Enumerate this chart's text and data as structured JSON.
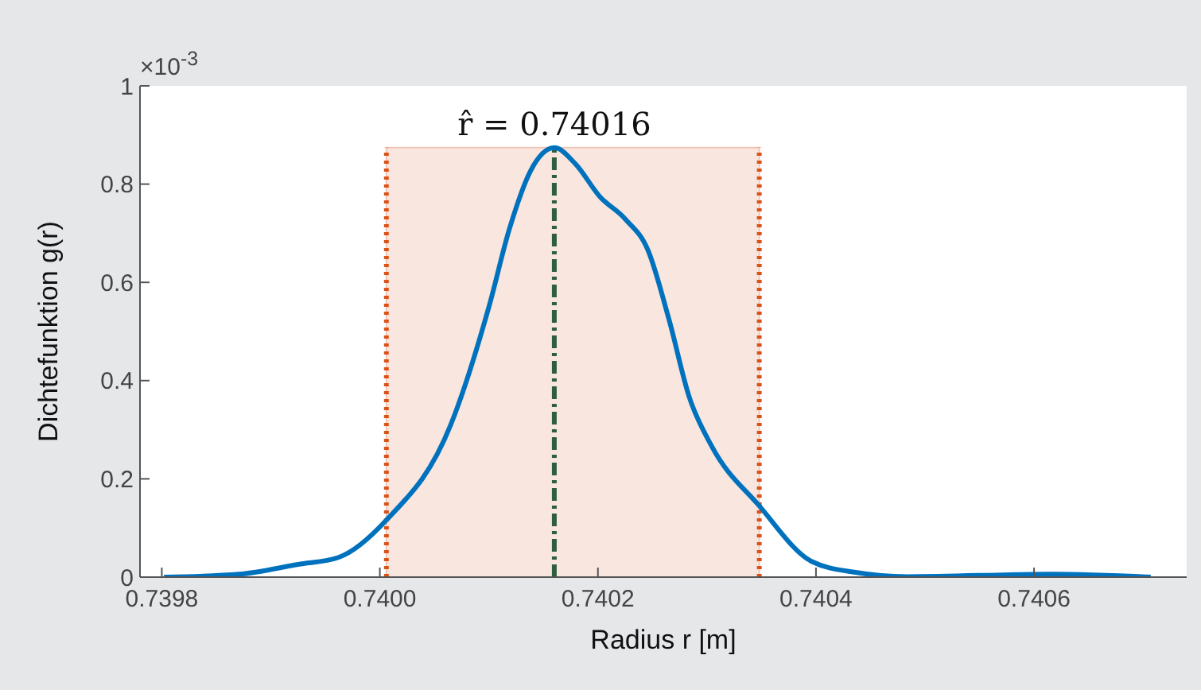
{
  "chart_data": {
    "type": "line",
    "xlabel": "Radius r [m]",
    "ylabel": "Dichtefunktion g(r)",
    "x": [
      0.739802,
      0.739871,
      0.739925,
      0.739962,
      0.740006,
      0.740065,
      0.7401,
      0.740119,
      0.740138,
      0.74016,
      0.740179,
      0.740202,
      0.740225,
      0.740246,
      0.740265,
      0.740284,
      0.740304,
      0.740348,
      0.740396,
      0.740435,
      0.740484,
      0.740615,
      0.740707
    ],
    "series": [
      {
        "color": "#0072bd",
        "values": [
          0,
          0.006,
          0.026,
          0.04,
          0.116,
          0.31,
          0.55,
          0.71,
          0.826,
          0.874,
          0.842,
          0.774,
          0.729,
          0.665,
          0.526,
          0.365,
          0.268,
          0.145,
          0.032,
          0.01,
          0.001,
          0.006,
          0
        ]
      }
    ],
    "xlim": [
      0.73978,
      0.74074
    ],
    "xticks": [
      {
        "value": 0.7398,
        "label": "0.7398"
      },
      {
        "value": 0.74,
        "label": "0.7400"
      },
      {
        "value": 0.7402,
        "label": "0.7402"
      },
      {
        "value": 0.7404,
        "label": "0.7404"
      },
      {
        "value": 0.7406,
        "label": "0.7406"
      }
    ],
    "ylim": [
      0,
      1
    ],
    "yticks": [
      0,
      0.2,
      0.4,
      0.6,
      0.8,
      1
    ],
    "ref_lines": [
      {
        "axis": "x",
        "value": 0.740006,
        "color": "#d95319",
        "line_style": "dotted"
      },
      {
        "axis": "x",
        "value": 0.740348,
        "color": "#d95319",
        "line_style": "dotted"
      },
      {
        "axis": "x",
        "value": 0.74016,
        "color": "#2e5e3e",
        "line_style": "dashdot",
        "label": "r̂ = 0.74016"
      }
    ],
    "bands": [
      {
        "axis": "x",
        "from": 0.740006,
        "to": 0.740348,
        "color": "#f9e6df"
      }
    ],
    "annotations": [
      "×10$^{-3}$"
    ],
    "grid": false,
    "legend": false,
    "marker": "none",
    "line_style": "solid"
  }
}
